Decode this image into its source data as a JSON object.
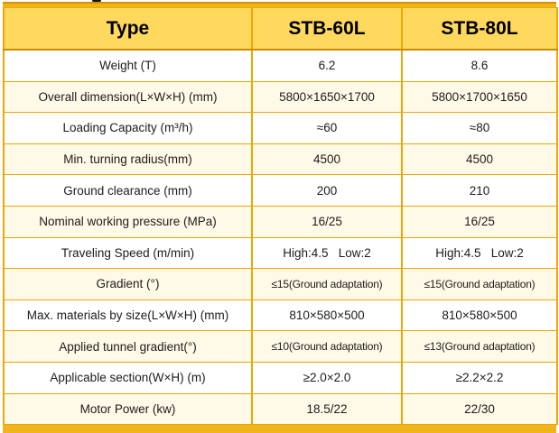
{
  "page": {
    "cropped_text_fragment": ""
  },
  "table": {
    "colors": {
      "header_bg": "#ffd95e",
      "row_cream": "#fff9e7",
      "row_white": "#ffffff",
      "border_gold": "#eda800",
      "border_dark": "#c98c00",
      "bar_gold": "#f0b41c",
      "text": "#1c1c1c"
    },
    "header": {
      "type_label": "Type",
      "columns": [
        "STB-60L",
        "STB-80L"
      ]
    },
    "rows": [
      {
        "label": "Weight (T)",
        "values": [
          "6.2",
          "8.6"
        ]
      },
      {
        "label": "Overall dimension(L×W×H) (mm)",
        "values": [
          "5800×1650×1700",
          "5800×1700×1650"
        ]
      },
      {
        "label": "Loading Capacity (m³/h)",
        "values": [
          "≈60",
          "≈80"
        ]
      },
      {
        "label": "Min. turning radius(mm)",
        "values": [
          "4500",
          "4500"
        ]
      },
      {
        "label": "Ground clearance (mm)",
        "values": [
          "200",
          "210"
        ]
      },
      {
        "label": "Nominal working pressure (MPa)",
        "values": [
          "16/25",
          "16/25"
        ]
      },
      {
        "label": "Traveling Speed (m/min)",
        "values": [
          "High:4.5   Low:2",
          "High:4.5   Low:2"
        ]
      },
      {
        "label": "Gradient (°)",
        "values": [
          "≤15(Ground adaptation)",
          "≤15(Ground adaptation)"
        ]
      },
      {
        "label": "Max. materials by size(L×W×H) (mm)",
        "values": [
          "810×580×500",
          "810×580×500"
        ]
      },
      {
        "label": "Applied tunnel gradient(°)",
        "values": [
          "≤10(Ground adaptation)",
          "≤13(Ground adaptation)"
        ]
      },
      {
        "label": "Applicable section(W×H) (m)",
        "values": [
          "≥2.0×2.0",
          "≥2.2×2.2"
        ]
      },
      {
        "label": "Motor Power (kw)",
        "values": [
          "18.5/22",
          "22/30"
        ]
      }
    ]
  }
}
